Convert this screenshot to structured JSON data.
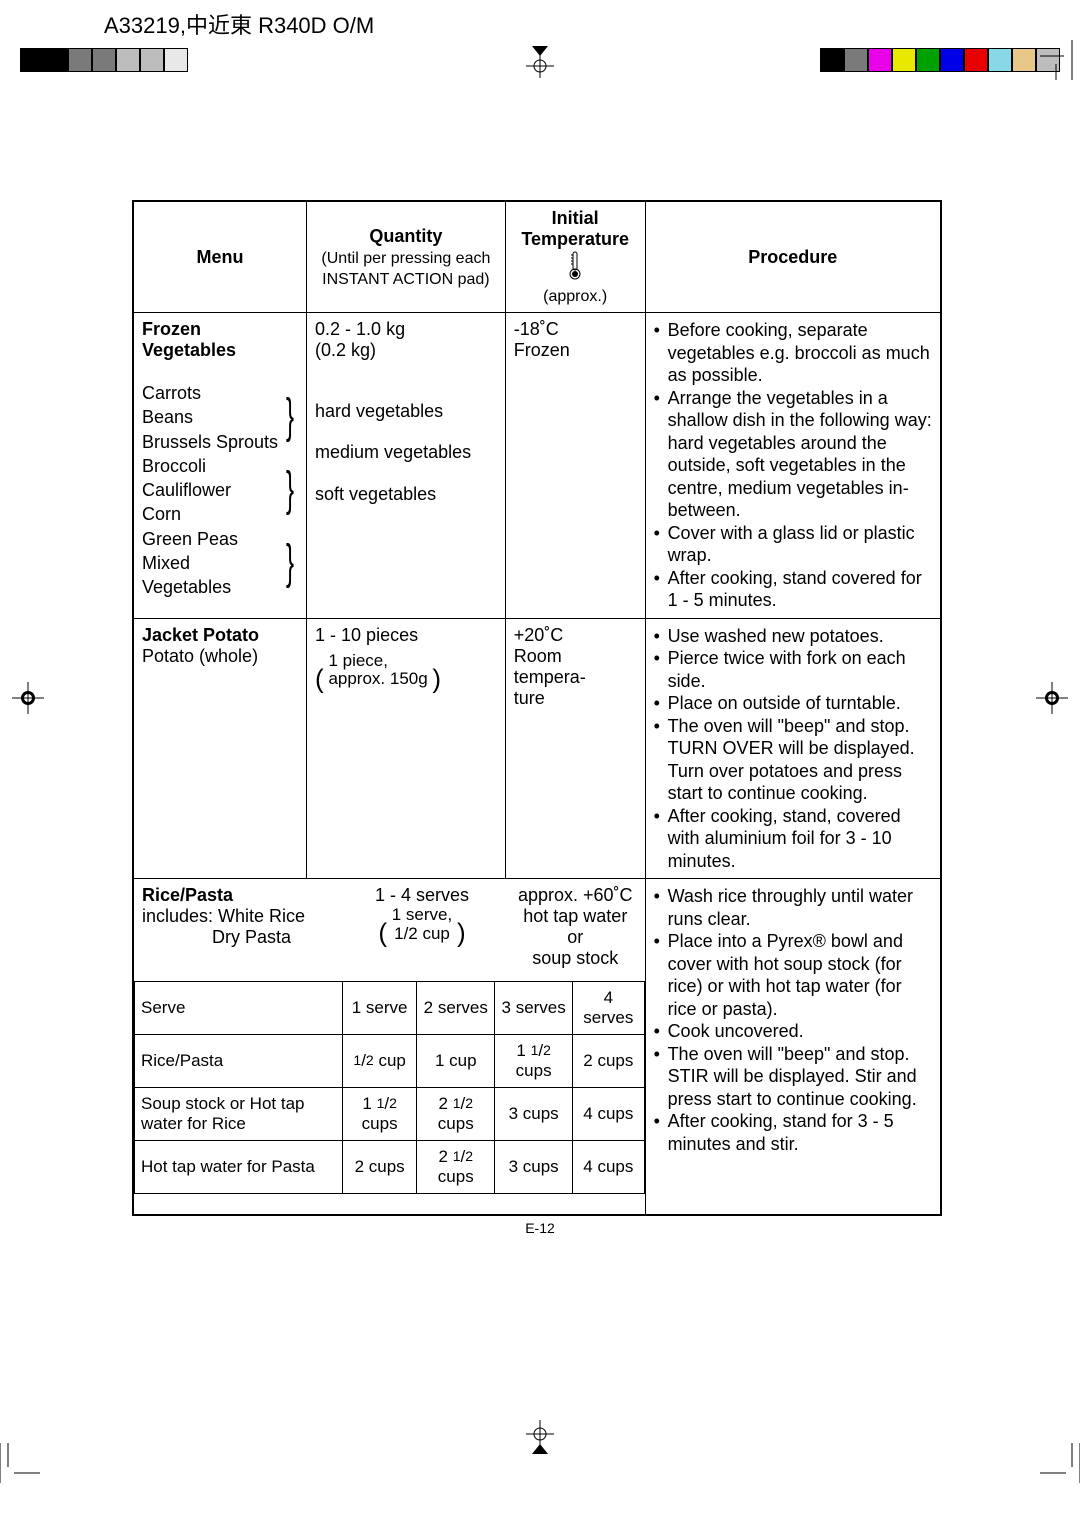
{
  "doc_header": "A33219,中近東 R340D O/M",
  "page_number": "E-12",
  "print_marks": {
    "left_squares": [
      "#000000",
      "#000000",
      "#7a7a7a",
      "#7a7a7a",
      "#bdbdbd",
      "#bdbdbd",
      "#e8e8e8"
    ],
    "color_bar": [
      "#000000",
      "#7a7a7a",
      "#e800e8",
      "#e8e800",
      "#00a000",
      "#0000e8",
      "#e80000",
      "#88d8e8",
      "#e8c888",
      "#bdbdbd"
    ]
  },
  "headers": {
    "menu": "Menu",
    "quantity": "Quantity",
    "quantity_sub": "(Until per pressing each INSTANT ACTION pad)",
    "temp": "Initial Temperature",
    "temp_sub": "(approx.)",
    "procedure": "Procedure"
  },
  "rows": {
    "frozen_veg": {
      "menu_title": "Frozen Vegetables",
      "veg_groups": {
        "hard": [
          "Carrots",
          "Beans",
          "Brussels Sprouts"
        ],
        "medium": [
          "Broccoli",
          "Cauliflower",
          "Corn"
        ],
        "soft": [
          "Green Peas",
          "Mixed Vegetables"
        ]
      },
      "qty_main": "0.2 - 1.0 kg",
      "qty_sub": "(0.2 kg)",
      "qty_labels": {
        "hard": "hard vegetables",
        "medium": "medium vegetables",
        "soft": "soft vegetables"
      },
      "temp": "-18˚C",
      "temp_sub": "Frozen",
      "procedure": [
        "Before cooking, separate vegetables e.g. broccoli as much as possible.",
        "Arrange the vegetables in a shallow dish in the following way: hard vegetables around the outside, soft vegetables in the centre, medium vegetables in-between.",
        "Cover with a glass lid or plastic wrap.",
        "After cooking, stand covered for 1 - 5 minutes."
      ]
    },
    "jacket_potato": {
      "menu_title": "Jacket Potato",
      "menu_sub": "Potato (whole)",
      "qty_main": "1 - 10 pieces",
      "qty_note1": "1 piece,",
      "qty_note2": "approx. 150g",
      "temp": "+20˚C",
      "temp_sub": "Room tempera-\nture",
      "procedure": [
        "Use washed new potatoes.",
        "Pierce twice with fork on each side.",
        "Place on outside of turntable.",
        "The oven will \"beep\" and stop. TURN OVER will be displayed. Turn over potatoes and press start to continue cooking.",
        "After cooking, stand, covered with aluminium foil for 3 - 10 minutes."
      ]
    },
    "rice_pasta": {
      "menu_title": "Rice/Pasta",
      "menu_sub1": "includes:  White Rice",
      "menu_sub2": "Dry Pasta",
      "qty_main": "1 - 4 serves",
      "qty_note1": "1 serve,",
      "qty_note2": "1/2 cup",
      "temp": "approx. +60˚C",
      "temp_sub1": "hot tap water or",
      "temp_sub2": "soup stock",
      "procedure": [
        "Wash rice throughly until water runs clear.",
        "Place into a Pyrex® bowl and cover with hot soup stock (for rice) or with hot tap water (for rice or pasta).",
        "Cook uncovered.",
        "The oven will \"beep\" and stop. STIR will be displayed. Stir and press start to continue cooking.",
        "After cooking, stand for 3 - 5 minutes and stir."
      ],
      "inner_table": {
        "header": [
          "Serve",
          "1 serve",
          "2 serves",
          "3 serves",
          "4 serves"
        ],
        "rows": [
          [
            "Rice/Pasta",
            "1/2 cup",
            "1 cup",
            "1 1/2 cups",
            "2 cups"
          ],
          [
            "Soup stock or Hot tap water for Rice",
            "1 1/2 cups",
            "2 1/2 cups",
            "3 cups",
            "4 cups"
          ],
          [
            "Hot tap water for Pasta",
            "2 cups",
            "2 1/2 cups",
            "3 cups",
            "4 cups"
          ]
        ]
      }
    }
  }
}
